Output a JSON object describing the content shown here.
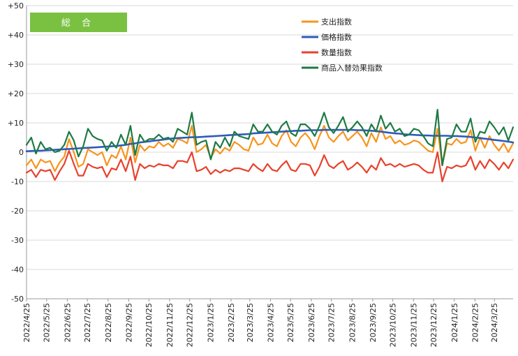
{
  "chart_data": {
    "type": "line",
    "badge": "総 合",
    "ylim": [
      -50,
      50
    ],
    "y_ticks": [
      "+50",
      "+40",
      "+30",
      "+20",
      "+10",
      "0",
      "-10",
      "-20",
      "-30",
      "-40",
      "-50"
    ],
    "y_tick_values": [
      50,
      40,
      30,
      20,
      10,
      0,
      -10,
      -20,
      -30,
      -40,
      -50
    ],
    "x_ticks": [
      "2022/4/25",
      "2022/5/25",
      "2022/6/25",
      "2022/7/25",
      "2022/8/25",
      "2022/9/25",
      "2022/10/25",
      "2022/11/25",
      "2022/12/25",
      "2023/1/25",
      "2023/2/25",
      "2023/3/25",
      "2023/4/25",
      "2023/5/25",
      "2023/6/25",
      "2023/7/25",
      "2023/8/25",
      "2023/9/25",
      "2023/10/25",
      "2023/11/25",
      "2023/12/25",
      "2024/1/25",
      "2024/2/25",
      "2024/3/25"
    ],
    "x_tick_weeks": [
      0,
      4.286,
      8.714,
      13.0,
      17.429,
      21.857,
      26.143,
      30.571,
      34.857,
      39.286,
      43.714,
      47.714,
      52.143,
      56.429,
      60.857,
      65.143,
      69.571,
      74.0,
      78.286,
      82.714,
      87.0,
      91.429,
      95.857,
      100.0
    ],
    "x_max_week": 104,
    "grid": "horizontal",
    "legend_position": "top-right",
    "series": [
      {
        "name": "支出指数",
        "color": "#F7941D",
        "values": [
          -4.5,
          -2.5,
          -5.5,
          -2.5,
          -3.5,
          -3.0,
          -6.5,
          -3.5,
          -1.5,
          4.5,
          0.0,
          -5.0,
          -4.0,
          1.0,
          0.0,
          -1.0,
          0.0,
          -4.5,
          -1.0,
          -2.0,
          2.0,
          -2.5,
          5.0,
          -3.5,
          2.5,
          0.5,
          2.0,
          1.5,
          3.5,
          2.0,
          3.0,
          1.5,
          4.5,
          4.0,
          3.0,
          9.0,
          0.0,
          1.0,
          2.5,
          -2.0,
          1.0,
          -0.5,
          1.5,
          0.5,
          3.5,
          2.5,
          1.0,
          0.5,
          5.0,
          2.5,
          3.0,
          6.0,
          3.0,
          2.0,
          5.5,
          7.5,
          3.5,
          2.0,
          5.0,
          6.5,
          4.5,
          1.0,
          5.5,
          9.0,
          5.0,
          3.5,
          5.5,
          7.0,
          4.0,
          5.5,
          7.0,
          5.0,
          2.0,
          6.5,
          3.5,
          8.5,
          4.5,
          5.5,
          3.0,
          4.0,
          2.5,
          3.0,
          4.0,
          3.5,
          2.0,
          0.5,
          0.0,
          8.0,
          -4.5,
          3.0,
          2.5,
          4.5,
          3.0,
          3.5,
          7.5,
          0.5,
          5.0,
          1.5,
          5.5,
          2.5,
          0.5,
          3.0,
          0.0,
          3.0
        ]
      },
      {
        "name": "価格指数",
        "color": "#2E5BBA",
        "values": [
          0.3,
          0.4,
          0.5,
          0.5,
          0.6,
          0.7,
          0.8,
          0.9,
          1.0,
          1.1,
          1.2,
          1.3,
          1.4,
          1.5,
          1.6,
          1.7,
          1.8,
          1.9,
          2.0,
          2.1,
          2.3,
          2.5,
          2.8,
          3.0,
          3.3,
          3.5,
          3.7,
          3.9,
          4.1,
          4.3,
          4.5,
          4.7,
          4.8,
          4.9,
          5.0,
          5.1,
          5.1,
          5.2,
          5.3,
          5.4,
          5.5,
          5.6,
          5.7,
          5.8,
          5.9,
          6.0,
          6.1,
          6.2,
          6.4,
          6.5,
          6.6,
          6.7,
          6.8,
          6.9,
          7.0,
          7.1,
          7.2,
          7.3,
          7.3,
          7.4,
          7.5,
          7.5,
          7.5,
          7.6,
          7.6,
          7.6,
          7.6,
          7.6,
          7.6,
          7.6,
          7.5,
          7.5,
          7.4,
          7.3,
          7.2,
          7.0,
          6.8,
          6.6,
          6.4,
          6.3,
          6.1,
          6.0,
          5.9,
          5.8,
          5.7,
          5.7,
          5.6,
          5.6,
          5.6,
          5.6,
          5.5,
          5.5,
          5.4,
          5.3,
          5.2,
          5.0,
          4.8,
          4.6,
          4.4,
          4.2,
          4.0,
          3.8,
          3.6,
          3.3
        ]
      },
      {
        "name": "数量指数",
        "color": "#E8412C",
        "values": [
          -7.0,
          -6.0,
          -8.5,
          -6.0,
          -6.5,
          -6.0,
          -9.5,
          -6.5,
          -4.0,
          0.5,
          -4.0,
          -8.0,
          -8.0,
          -4.0,
          -5.0,
          -5.5,
          -5.0,
          -8.5,
          -5.5,
          -6.0,
          -2.5,
          -6.5,
          -1.5,
          -9.5,
          -4.0,
          -5.5,
          -4.5,
          -5.0,
          -4.0,
          -4.5,
          -4.5,
          -5.5,
          -3.0,
          -3.0,
          -3.5,
          0.0,
          -6.5,
          -6.0,
          -5.0,
          -7.5,
          -6.0,
          -7.0,
          -6.0,
          -6.5,
          -5.5,
          -5.5,
          -6.0,
          -6.5,
          -4.0,
          -5.5,
          -6.5,
          -4.0,
          -6.0,
          -6.5,
          -4.5,
          -3.0,
          -6.0,
          -6.5,
          -4.0,
          -4.0,
          -4.5,
          -8.0,
          -5.0,
          -1.0,
          -4.5,
          -5.5,
          -4.0,
          -3.0,
          -6.0,
          -5.0,
          -3.5,
          -5.0,
          -7.0,
          -4.5,
          -6.0,
          -2.0,
          -4.5,
          -4.0,
          -5.0,
          -4.0,
          -5.0,
          -4.5,
          -4.0,
          -4.5,
          -6.0,
          -7.0,
          -7.0,
          0.0,
          -10.0,
          -5.0,
          -5.5,
          -4.5,
          -5.0,
          -4.5,
          -1.5,
          -6.0,
          -3.0,
          -5.5,
          -2.5,
          -4.0,
          -6.0,
          -3.5,
          -5.5,
          -2.5
        ]
      },
      {
        "name": "商品入替効果指数",
        "color": "#1E7A45",
        "values": [
          2.5,
          5.0,
          -0.5,
          3.5,
          1.0,
          1.5,
          0.0,
          0.5,
          2.5,
          7.0,
          4.0,
          -1.5,
          2.0,
          8.0,
          5.5,
          4.5,
          4.0,
          0.5,
          3.5,
          1.5,
          6.0,
          2.5,
          9.0,
          -1.0,
          6.0,
          3.5,
          4.5,
          4.5,
          6.0,
          4.5,
          5.0,
          3.5,
          8.0,
          7.0,
          6.0,
          13.5,
          2.5,
          3.5,
          4.0,
          -2.5,
          3.5,
          1.5,
          5.0,
          2.0,
          7.0,
          5.5,
          5.0,
          4.5,
          9.5,
          7.0,
          7.0,
          9.5,
          7.0,
          6.0,
          9.0,
          10.5,
          6.5,
          5.5,
          9.5,
          9.5,
          8.0,
          5.5,
          9.0,
          13.5,
          8.5,
          6.5,
          9.0,
          12.0,
          7.0,
          8.5,
          10.5,
          8.5,
          5.5,
          9.5,
          7.0,
          12.5,
          8.0,
          10.0,
          7.0,
          8.0,
          5.5,
          6.0,
          8.0,
          7.5,
          5.5,
          3.0,
          2.0,
          14.5,
          -4.5,
          4.5,
          5.0,
          9.5,
          7.0,
          7.0,
          11.5,
          3.5,
          7.0,
          6.5,
          10.5,
          8.5,
          6.0,
          8.5,
          4.0,
          8.5
        ]
      }
    ]
  }
}
